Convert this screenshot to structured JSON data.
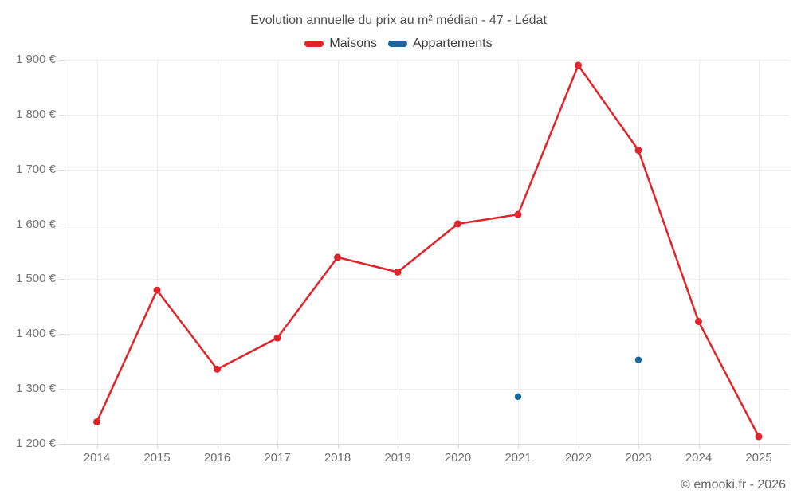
{
  "header": {
    "title": "Evolution annuelle du prix au m² médian - 47 - Lédat"
  },
  "legend": {
    "position": "top",
    "items": [
      {
        "label": "Maisons",
        "color": "#e0242a"
      },
      {
        "label": "Appartements",
        "color": "#17689d"
      }
    ]
  },
  "footer": {
    "credit": "© emooki.fr - 2026"
  },
  "colors": {
    "maisons": "#e0242a",
    "appartements": "#17689d",
    "gridline": "#ededed",
    "axis_line": "#d8d8d8",
    "title_text": "#4e4e4e",
    "axis_text": "#757575",
    "background": "#ffffff"
  },
  "chart_data": {
    "type": "line",
    "title": "Evolution annuelle du prix au m² médian - 47 - Lédat",
    "xlabel": "",
    "ylabel": "",
    "grid": true,
    "legend_position": "top",
    "categories": [
      "2014",
      "2015",
      "2016",
      "2017",
      "2018",
      "2019",
      "2020",
      "2021",
      "2022",
      "2023",
      "2024",
      "2025"
    ],
    "series": [
      {
        "name": "Maisons",
        "type": "line",
        "color": "#e0242a",
        "values": [
          1240,
          1480,
          1336,
          1393,
          1540,
          1513,
          1601,
          1618,
          1890,
          1735,
          1423,
          1213
        ]
      },
      {
        "name": "Appartements",
        "type": "scatter",
        "color": "#17689d",
        "values": [
          null,
          null,
          null,
          null,
          null,
          null,
          null,
          1286,
          null,
          1353,
          null,
          null
        ]
      }
    ],
    "ylim": [
      1200,
      1900
    ],
    "yticks": [
      {
        "value": 1900,
        "label": "1 900 €"
      },
      {
        "value": 1800,
        "label": "1 800 €"
      },
      {
        "value": 1700,
        "label": "1 700 €"
      },
      {
        "value": 1600,
        "label": "1 600 €"
      },
      {
        "value": 1500,
        "label": "1 500 €"
      },
      {
        "value": 1400,
        "label": "1 400 €"
      },
      {
        "value": 1300,
        "label": "1 300 €"
      },
      {
        "value": 1200,
        "label": "1 200 €"
      }
    ]
  }
}
